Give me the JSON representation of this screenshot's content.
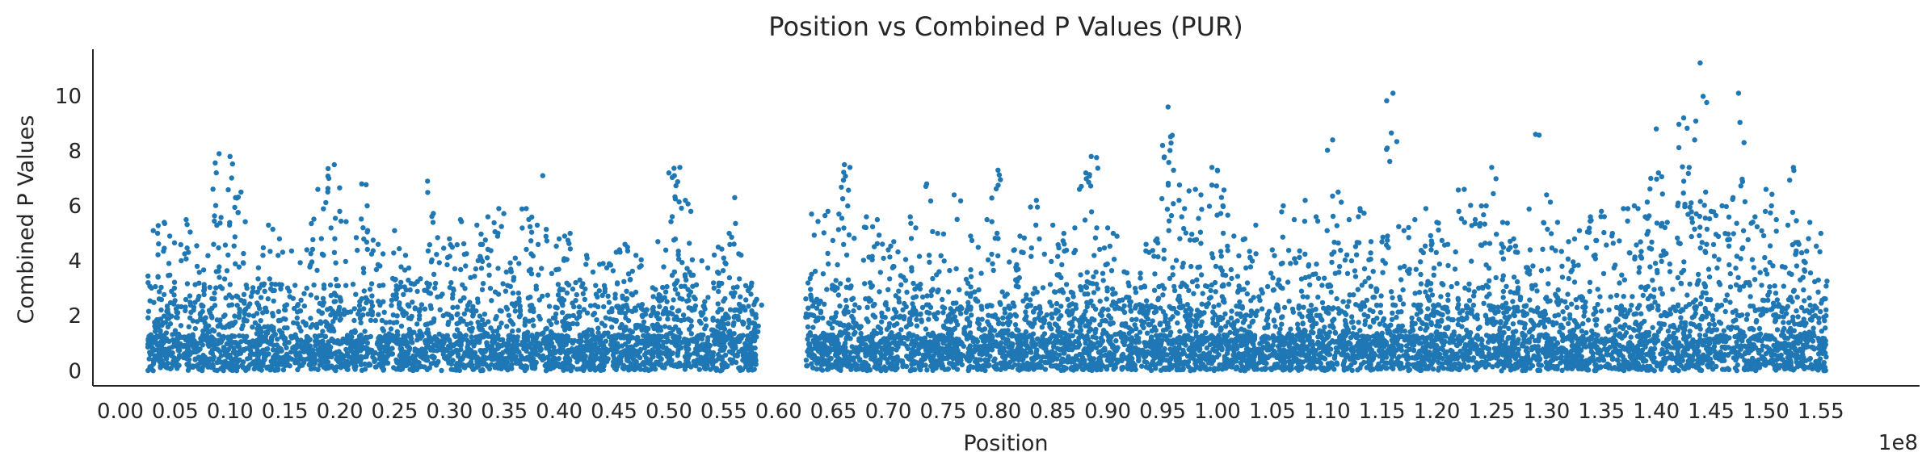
{
  "chart_data": {
    "type": "scatter",
    "title": "Position vs Combined P Values (PUR)",
    "xlabel": "Position",
    "ylabel": "Combined P Values",
    "x_offset_label": "1e8",
    "xlim": [
      -0.025,
      1.64
    ],
    "ylim": [
      -0.55,
      11.7
    ],
    "x_ticks": [
      0.0,
      0.05,
      0.1,
      0.15,
      0.2,
      0.25,
      0.3,
      0.35,
      0.4,
      0.45,
      0.5,
      0.55,
      0.6,
      0.65,
      0.7,
      0.75,
      0.8,
      0.85,
      0.9,
      0.95,
      1.0,
      1.05,
      1.1,
      1.15,
      1.2,
      1.25,
      1.3,
      1.35,
      1.4,
      1.45,
      1.5,
      1.55
    ],
    "x_tick_labels": [
      "0.00",
      "0.05",
      "0.10",
      "0.15",
      "0.20",
      "0.25",
      "0.30",
      "0.35",
      "0.40",
      "0.45",
      "0.50",
      "0.55",
      "0.60",
      "0.65",
      "0.70",
      "0.75",
      "0.80",
      "0.85",
      "0.90",
      "0.95",
      "1.00",
      "1.05",
      "1.10",
      "1.15",
      "1.20",
      "1.25",
      "1.30",
      "1.35",
      "1.40",
      "1.45",
      "1.50",
      "1.55"
    ],
    "y_ticks": [
      0,
      2,
      4,
      6,
      8,
      10
    ],
    "y_tick_labels": [
      "0",
      "2",
      "4",
      "6",
      "8",
      "10"
    ],
    "grid": false,
    "marker_color": "#1f77b4",
    "series": [
      {
        "x_ranges": [
          [
            0.025,
            0.58
          ],
          [
            0.625,
            1.555
          ]
        ],
        "peaks": [
          [
            0.03,
            5.1
          ],
          [
            0.04,
            5.4
          ],
          [
            0.045,
            4.9
          ],
          [
            0.06,
            5.5
          ],
          [
            0.07,
            3.8
          ],
          [
            0.085,
            4.6
          ],
          [
            0.09,
            7.9
          ],
          [
            0.1,
            7.8
          ],
          [
            0.105,
            6.3
          ],
          [
            0.11,
            6.5
          ],
          [
            0.13,
            4.2
          ],
          [
            0.135,
            5.3
          ],
          [
            0.145,
            4.8
          ],
          [
            0.17,
            4.4
          ],
          [
            0.18,
            6.6
          ],
          [
            0.19,
            7.0
          ],
          [
            0.195,
            7.5
          ],
          [
            0.2,
            5.8
          ],
          [
            0.22,
            6.8
          ],
          [
            0.225,
            6.0
          ],
          [
            0.235,
            4.6
          ],
          [
            0.25,
            5.1
          ],
          [
            0.26,
            4.2
          ],
          [
            0.28,
            6.9
          ],
          [
            0.285,
            5.4
          ],
          [
            0.3,
            4.8
          ],
          [
            0.31,
            5.5
          ],
          [
            0.325,
            5.3
          ],
          [
            0.335,
            5.6
          ],
          [
            0.345,
            5.9
          ],
          [
            0.36,
            4.1
          ],
          [
            0.37,
            5.9
          ],
          [
            0.38,
            5.3
          ],
          [
            0.385,
            7.1
          ],
          [
            0.4,
            4.8
          ],
          [
            0.405,
            4.9
          ],
          [
            0.41,
            5.0
          ],
          [
            0.425,
            4.2
          ],
          [
            0.44,
            3.9
          ],
          [
            0.455,
            4.4
          ],
          [
            0.46,
            4.6
          ],
          [
            0.47,
            4.2
          ],
          [
            0.49,
            4.7
          ],
          [
            0.5,
            7.2
          ],
          [
            0.505,
            7.1
          ],
          [
            0.51,
            7.4
          ],
          [
            0.515,
            6.2
          ],
          [
            0.52,
            5.8
          ],
          [
            0.53,
            4.0
          ],
          [
            0.545,
            4.5
          ],
          [
            0.55,
            4.1
          ],
          [
            0.555,
            5.0
          ],
          [
            0.56,
            6.3
          ],
          [
            0.57,
            3.1
          ],
          [
            0.58,
            2.6
          ],
          [
            0.63,
            5.7
          ],
          [
            0.645,
            5.8
          ],
          [
            0.655,
            5.7
          ],
          [
            0.66,
            7.5
          ],
          [
            0.665,
            7.4
          ],
          [
            0.68,
            5.6
          ],
          [
            0.69,
            5.5
          ],
          [
            0.7,
            4.4
          ],
          [
            0.705,
            4.7
          ],
          [
            0.72,
            5.6
          ],
          [
            0.725,
            5.2
          ],
          [
            0.735,
            6.8
          ],
          [
            0.745,
            5.0
          ],
          [
            0.76,
            6.4
          ],
          [
            0.775,
            4.9
          ],
          [
            0.79,
            5.5
          ],
          [
            0.8,
            7.3
          ],
          [
            0.815,
            4.4
          ],
          [
            0.82,
            4.9
          ],
          [
            0.835,
            6.2
          ],
          [
            0.85,
            5.3
          ],
          [
            0.86,
            5.0
          ],
          [
            0.87,
            5.2
          ],
          [
            0.88,
            7.2
          ],
          [
            0.885,
            7.8
          ],
          [
            0.89,
            5.2
          ],
          [
            0.9,
            5.2
          ],
          [
            0.905,
            5.0
          ],
          [
            0.915,
            3.6
          ],
          [
            0.925,
            3.0
          ],
          [
            0.935,
            4.6
          ],
          [
            0.945,
            4.8
          ],
          [
            0.95,
            8.2
          ],
          [
            0.955,
            9.6
          ],
          [
            0.96,
            7.3
          ],
          [
            0.965,
            6.2
          ],
          [
            0.97,
            5.9
          ],
          [
            0.98,
            6.6
          ],
          [
            0.985,
            6.4
          ],
          [
            0.995,
            7.4
          ],
          [
            1.0,
            7.3
          ],
          [
            1.005,
            6.0
          ],
          [
            1.015,
            4.9
          ],
          [
            1.025,
            4.8
          ],
          [
            1.035,
            5.3
          ],
          [
            1.05,
            4.4
          ],
          [
            1.06,
            6.0
          ],
          [
            1.07,
            5.5
          ],
          [
            1.08,
            6.2
          ],
          [
            1.09,
            5.6
          ],
          [
            1.1,
            5.1
          ],
          [
            1.105,
            8.4
          ],
          [
            1.11,
            6.5
          ],
          [
            1.12,
            5.5
          ],
          [
            1.13,
            5.9
          ],
          [
            1.14,
            4.7
          ],
          [
            1.155,
            4.9
          ],
          [
            1.16,
            10.1
          ],
          [
            1.17,
            5.1
          ],
          [
            1.18,
            5.5
          ],
          [
            1.19,
            5.9
          ],
          [
            1.2,
            5.4
          ],
          [
            1.21,
            4.6
          ],
          [
            1.22,
            5.8
          ],
          [
            1.225,
            6.6
          ],
          [
            1.235,
            5.5
          ],
          [
            1.245,
            6.0
          ],
          [
            1.25,
            7.4
          ],
          [
            1.26,
            5.4
          ],
          [
            1.27,
            4.8
          ],
          [
            1.285,
            4.4
          ],
          [
            1.29,
            8.6
          ],
          [
            1.3,
            6.4
          ],
          [
            1.31,
            5.4
          ],
          [
            1.32,
            4.7
          ],
          [
            1.33,
            5.1
          ],
          [
            1.34,
            5.6
          ],
          [
            1.35,
            5.8
          ],
          [
            1.36,
            5.0
          ],
          [
            1.37,
            5.9
          ],
          [
            1.38,
            6.0
          ],
          [
            1.39,
            5.6
          ],
          [
            1.395,
            7.0
          ],
          [
            1.4,
            8.8
          ],
          [
            1.41,
            5.4
          ],
          [
            1.42,
            6.1
          ],
          [
            1.425,
            9.2
          ],
          [
            1.43,
            7.4
          ],
          [
            1.435,
            8.4
          ],
          [
            1.44,
            11.2
          ],
          [
            1.445,
            6.5
          ],
          [
            1.45,
            5.8
          ],
          [
            1.46,
            6.0
          ],
          [
            1.47,
            6.3
          ],
          [
            1.475,
            10.1
          ],
          [
            1.48,
            8.3
          ],
          [
            1.49,
            5.6
          ],
          [
            1.5,
            6.6
          ],
          [
            1.505,
            6.0
          ],
          [
            1.52,
            5.3
          ],
          [
            1.525,
            7.4
          ],
          [
            1.53,
            4.6
          ],
          [
            1.54,
            5.4
          ],
          [
            1.55,
            5.0
          ]
        ]
      }
    ]
  }
}
